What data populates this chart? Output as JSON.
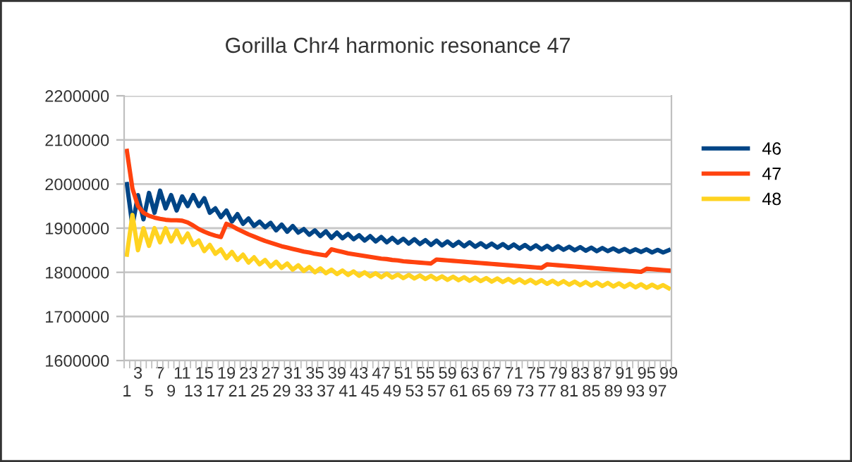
{
  "chart_data": {
    "type": "line",
    "title": "Gorilla Chr4 harmonic resonance 47",
    "categories": [
      "1",
      null,
      "3",
      null,
      "5",
      null,
      "7",
      null,
      "9",
      null,
      "11",
      null,
      "13",
      null,
      "15",
      null,
      "17",
      null,
      "19",
      null,
      "21",
      null,
      "23",
      null,
      "25",
      null,
      "27",
      null,
      "29",
      null,
      "31",
      null,
      "33",
      null,
      "35",
      null,
      "37",
      null,
      "39",
      null,
      "41",
      null,
      "43",
      null,
      "45",
      null,
      "47",
      null,
      "49",
      null,
      "51",
      null,
      "53",
      null,
      "55",
      null,
      "57",
      null,
      "59",
      null,
      "61",
      null,
      "63",
      null,
      "65",
      null,
      "67",
      null,
      "69",
      null,
      "71",
      null,
      "73",
      null,
      "75",
      null,
      "77",
      null,
      "79",
      null,
      "81",
      null,
      "83",
      null,
      "85",
      null,
      "87",
      null,
      "89",
      null,
      "91",
      null,
      "93",
      null,
      "95",
      null,
      "97",
      null,
      "99"
    ],
    "series": [
      {
        "name": "46",
        "color": "#004586",
        "values": [
          2000000,
          1905000,
          1975000,
          1920000,
          1980000,
          1935000,
          1985000,
          1945000,
          1975000,
          1940000,
          1972000,
          1950000,
          1975000,
          1950000,
          1968000,
          1935000,
          1945000,
          1925000,
          1940000,
          1915000,
          1932000,
          1910000,
          1922000,
          1905000,
          1915000,
          1902000,
          1912000,
          1895000,
          1908000,
          1892000,
          1905000,
          1890000,
          1898000,
          1885000,
          1895000,
          1882000,
          1893000,
          1878000,
          1890000,
          1877000,
          1887000,
          1875000,
          1884000,
          1872000,
          1882000,
          1870000,
          1880000,
          1868000,
          1878000,
          1867000,
          1876000,
          1865000,
          1875000,
          1864000,
          1873000,
          1862000,
          1872000,
          1861000,
          1870000,
          1860000,
          1869000,
          1859000,
          1868000,
          1858000,
          1866000,
          1857000,
          1865000,
          1856000,
          1864000,
          1855000,
          1863000,
          1854000,
          1862000,
          1853000,
          1861000,
          1852000,
          1860000,
          1851000,
          1859000,
          1851000,
          1858000,
          1850000,
          1857000,
          1849000,
          1856000,
          1848000,
          1855000,
          1848000,
          1854000,
          1847000,
          1853000,
          1846000,
          1852000,
          1846000,
          1852000,
          1845000,
          1851000,
          1845000,
          1850000
        ]
      },
      {
        "name": "47",
        "color": "#ff420e",
        "values": [
          2075000,
          1990000,
          1950000,
          1935000,
          1928000,
          1924000,
          1921000,
          1919000,
          1918000,
          1918000,
          1917000,
          1913000,
          1906000,
          1898000,
          1892000,
          1887000,
          1883000,
          1880000,
          1910000,
          1905000,
          1898000,
          1892000,
          1886000,
          1881000,
          1876000,
          1871000,
          1867000,
          1863000,
          1859000,
          1856000,
          1853000,
          1850000,
          1847000,
          1845000,
          1842000,
          1840000,
          1838000,
          1852000,
          1849000,
          1846000,
          1843000,
          1841000,
          1839000,
          1837000,
          1835000,
          1833000,
          1831000,
          1830000,
          1828000,
          1827000,
          1825000,
          1824000,
          1823000,
          1822000,
          1821000,
          1820000,
          1829000,
          1828000,
          1827000,
          1826000,
          1825000,
          1824000,
          1823000,
          1822000,
          1821000,
          1820000,
          1819000,
          1818000,
          1817000,
          1816000,
          1815000,
          1814000,
          1813000,
          1812000,
          1811000,
          1810000,
          1818000,
          1817000,
          1816000,
          1815000,
          1814000,
          1813000,
          1812000,
          1811000,
          1810000,
          1809000,
          1808000,
          1807000,
          1806000,
          1805000,
          1804000,
          1803000,
          1802000,
          1801000,
          1808000,
          1807000,
          1806000,
          1805000,
          1804000
        ]
      },
      {
        "name": "48",
        "color": "#ffd320",
        "values": [
          1840000,
          1930000,
          1850000,
          1900000,
          1860000,
          1900000,
          1868000,
          1900000,
          1870000,
          1895000,
          1868000,
          1888000,
          1862000,
          1872000,
          1848000,
          1862000,
          1842000,
          1852000,
          1832000,
          1846000,
          1828000,
          1840000,
          1822000,
          1834000,
          1818000,
          1828000,
          1813000,
          1824000,
          1810000,
          1820000,
          1806000,
          1816000,
          1803000,
          1812000,
          1800000,
          1809000,
          1798000,
          1806000,
          1796000,
          1804000,
          1794000,
          1802000,
          1792000,
          1800000,
          1791000,
          1798000,
          1789000,
          1797000,
          1788000,
          1795000,
          1787000,
          1794000,
          1786000,
          1793000,
          1785000,
          1792000,
          1784000,
          1791000,
          1783000,
          1790000,
          1782000,
          1789000,
          1781000,
          1788000,
          1780000,
          1787000,
          1779000,
          1786000,
          1778000,
          1785000,
          1777000,
          1784000,
          1776000,
          1783000,
          1775000,
          1782000,
          1774000,
          1781000,
          1773000,
          1780000,
          1772000,
          1779000,
          1771000,
          1778000,
          1770000,
          1777000,
          1769000,
          1776000,
          1768000,
          1775000,
          1767000,
          1774000,
          1766000,
          1773000,
          1765000,
          1772000,
          1765000,
          1771000,
          1764000
        ]
      }
    ],
    "ylim": [
      1600000,
      2200000
    ],
    "yticks": [
      1600000,
      1700000,
      1800000,
      1900000,
      2000000,
      2100000,
      2200000
    ],
    "grid": "y",
    "legend": "right",
    "marker": "none",
    "line_style": "solid"
  }
}
